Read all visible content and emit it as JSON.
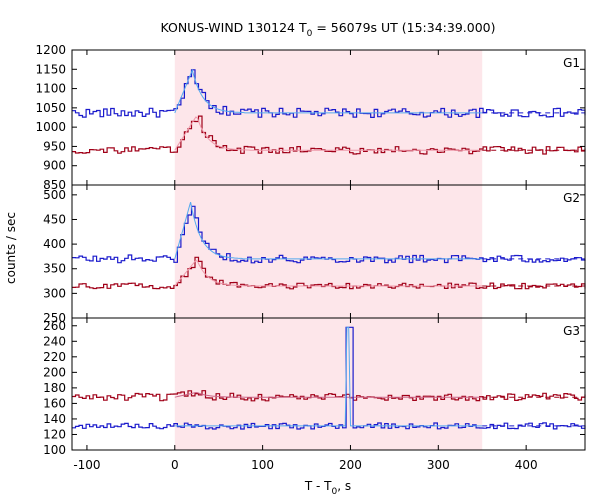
{
  "chart_data": {
    "type": "line",
    "title": {
      "main": "KONUS-WIND 130124 T",
      "sub": "0",
      "rest": " = 56079s UT (15:34:39.000)"
    },
    "xlabel": {
      "main": "T - T",
      "sub": "0",
      "rest": ", s"
    },
    "ylabel": "counts / sec",
    "xlim": [
      -117,
      467
    ],
    "xticks": [
      "-100",
      "0",
      "100",
      "200",
      "300",
      "400"
    ],
    "shaded_interval": [
      0,
      350
    ],
    "colors": {
      "shade": "#fde6ea",
      "g1_series": "#1a1acc",
      "g1_fit": "#55aaee",
      "g2_series": "#a00018",
      "g2_fit": "#ee99aa",
      "g3_series": "#cc6688"
    },
    "panels": [
      {
        "label": "G1",
        "ylim": [
          850,
          1200
        ],
        "yticks": [
          "850",
          "900",
          "950",
          "1000",
          "1050",
          "1100",
          "1150",
          "1200"
        ],
        "series": [
          {
            "baseline": 1037,
            "noise": 12,
            "peak": 1160,
            "peak_time": 20
          },
          {
            "baseline": 940,
            "noise": 10,
            "peak": 1040,
            "peak_time": 25
          }
        ]
      },
      {
        "label": "G2",
        "ylim": [
          250,
          520
        ],
        "yticks": [
          "250",
          "300",
          "350",
          "400",
          "450",
          "500"
        ],
        "series": [
          {
            "baseline": 370,
            "noise": 8,
            "peak": 498,
            "peak_time": 18
          },
          {
            "baseline": 315,
            "noise": 6,
            "peak": 375,
            "peak_time": 25
          }
        ]
      },
      {
        "label": "G3",
        "ylim": [
          100,
          270
        ],
        "yticks": [
          "100",
          "120",
          "140",
          "160",
          "180",
          "200",
          "220",
          "240",
          "260"
        ],
        "series": [
          {
            "baseline": 168,
            "noise": 5,
            "peak": 175,
            "peak_time": 25
          },
          {
            "baseline": 131,
            "noise": 4,
            "peak": 258,
            "peak_time": 197
          }
        ]
      }
    ]
  }
}
